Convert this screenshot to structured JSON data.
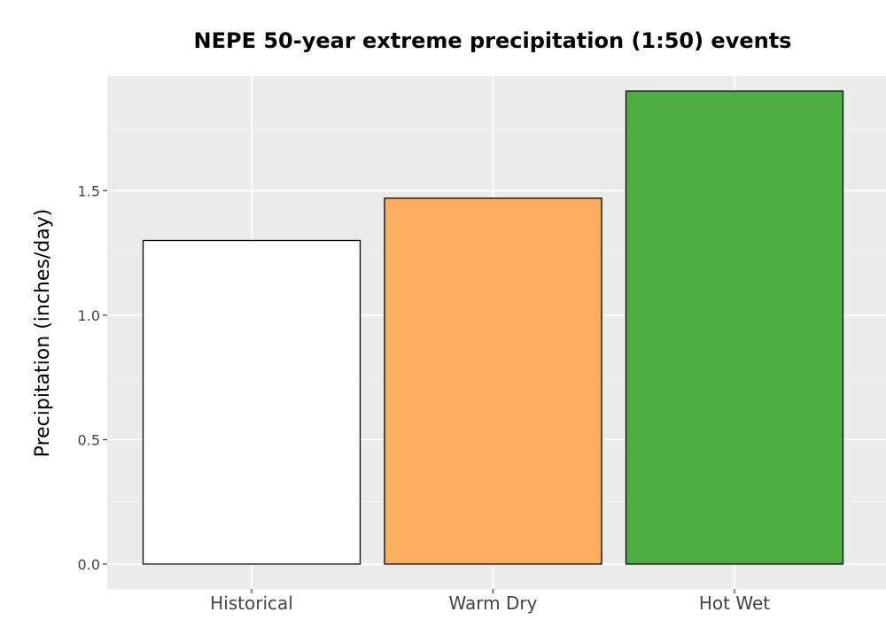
{
  "chart_data": {
    "type": "bar",
    "title": "NEPE 50-year extreme precipitation (1:50) events",
    "ylabel": "Precipitation (inches/day)",
    "xlabel": "",
    "categories": [
      "Historical",
      "Warm Dry",
      "Hot Wet"
    ],
    "values": [
      1.3,
      1.47,
      1.9
    ],
    "bar_colors": [
      "#ffffff",
      "#fdae61",
      "#4dac40"
    ],
    "ylim": [
      -0.1,
      1.96
    ],
    "yticks": [
      0.0,
      0.5,
      1.0,
      1.5
    ],
    "ytick_labels": [
      "0.0",
      "0.5",
      "1.0",
      "1.5"
    ],
    "grid": true,
    "panel_background": "#ebebeb",
    "legend": "none"
  }
}
